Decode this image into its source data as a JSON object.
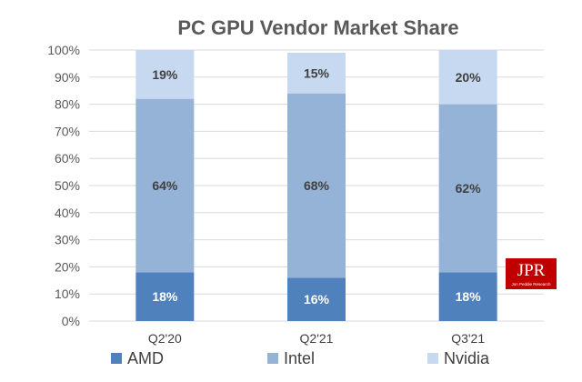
{
  "chart_data": {
    "type": "bar",
    "stacked": true,
    "title": "PC GPU Vendor Market Share",
    "categories": [
      "Q2'20",
      "Q2'21",
      "Q3'21"
    ],
    "series": [
      {
        "name": "AMD",
        "values": [
          18,
          16,
          18
        ],
        "labels": [
          "18%",
          "16%",
          "18%"
        ],
        "color": "#4f81bd"
      },
      {
        "name": "Intel",
        "values": [
          64,
          68,
          62
        ],
        "labels": [
          "64%",
          "68%",
          "62%"
        ],
        "color": "#95b3d7"
      },
      {
        "name": "Nvidia",
        "values": [
          19,
          15,
          20
        ],
        "labels": [
          "19%",
          "15%",
          "20%"
        ],
        "color": "#c6d9f1"
      }
    ],
    "ylim": [
      0,
      100
    ],
    "y_ticks": [
      "0%",
      "10%",
      "20%",
      "30%",
      "40%",
      "50%",
      "60%",
      "70%",
      "80%",
      "90%",
      "100%"
    ],
    "grid": true,
    "legend_position": "bottom",
    "xlabel": "",
    "ylabel": ""
  },
  "logo": {
    "text": "JPR",
    "subtext": "Jon Peddie Research",
    "color": "#c00000"
  }
}
